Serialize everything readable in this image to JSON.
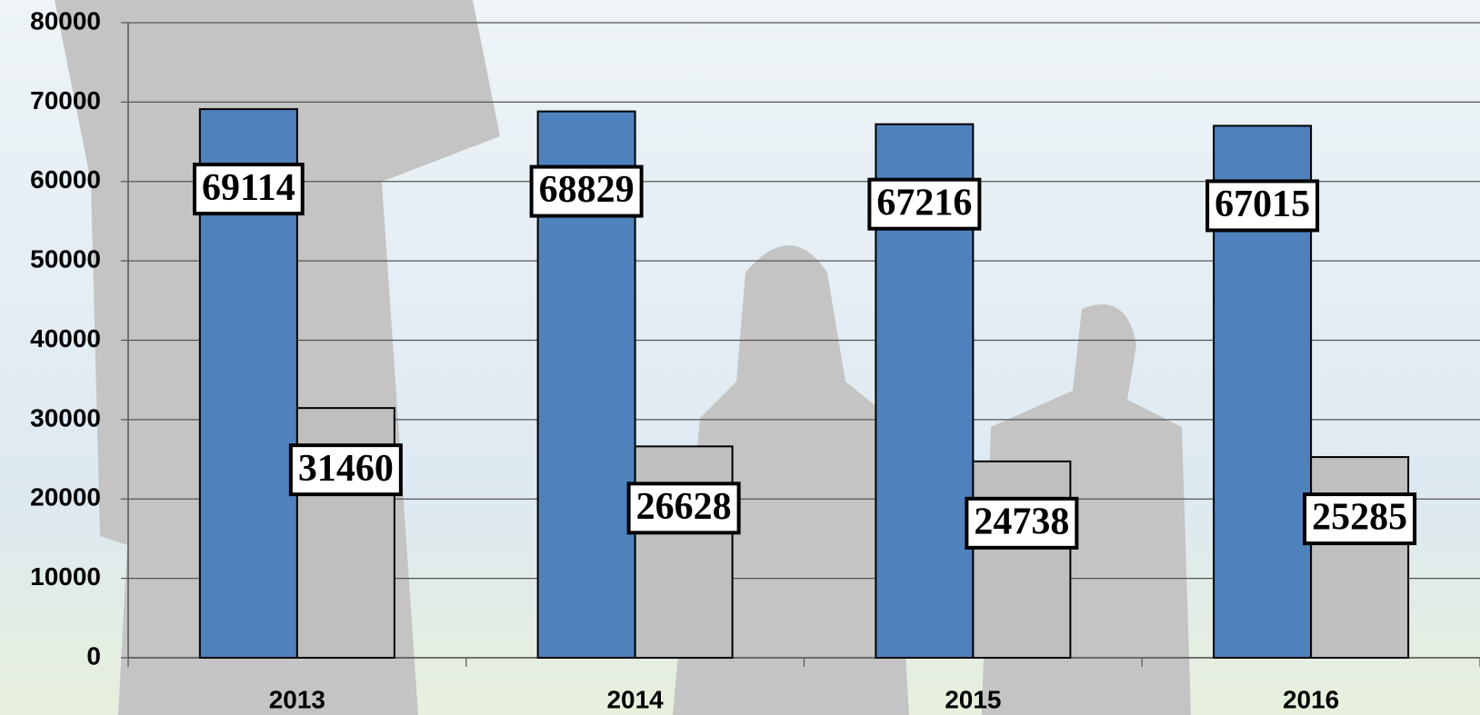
{
  "chart_data": {
    "type": "bar",
    "categories": [
      "2013",
      "2014",
      "2015",
      "2016"
    ],
    "series": [
      {
        "color": "#4f81bd",
        "values": [
          69114,
          68829,
          67216,
          67015
        ]
      },
      {
        "color": "#bfbfbf",
        "values": [
          31460,
          26628,
          24738,
          25285
        ]
      }
    ],
    "ylim": [
      0,
      80000
    ],
    "yticks": [
      0,
      10000,
      20000,
      30000,
      40000,
      50000,
      60000,
      70000,
      80000
    ],
    "grid": true
  }
}
